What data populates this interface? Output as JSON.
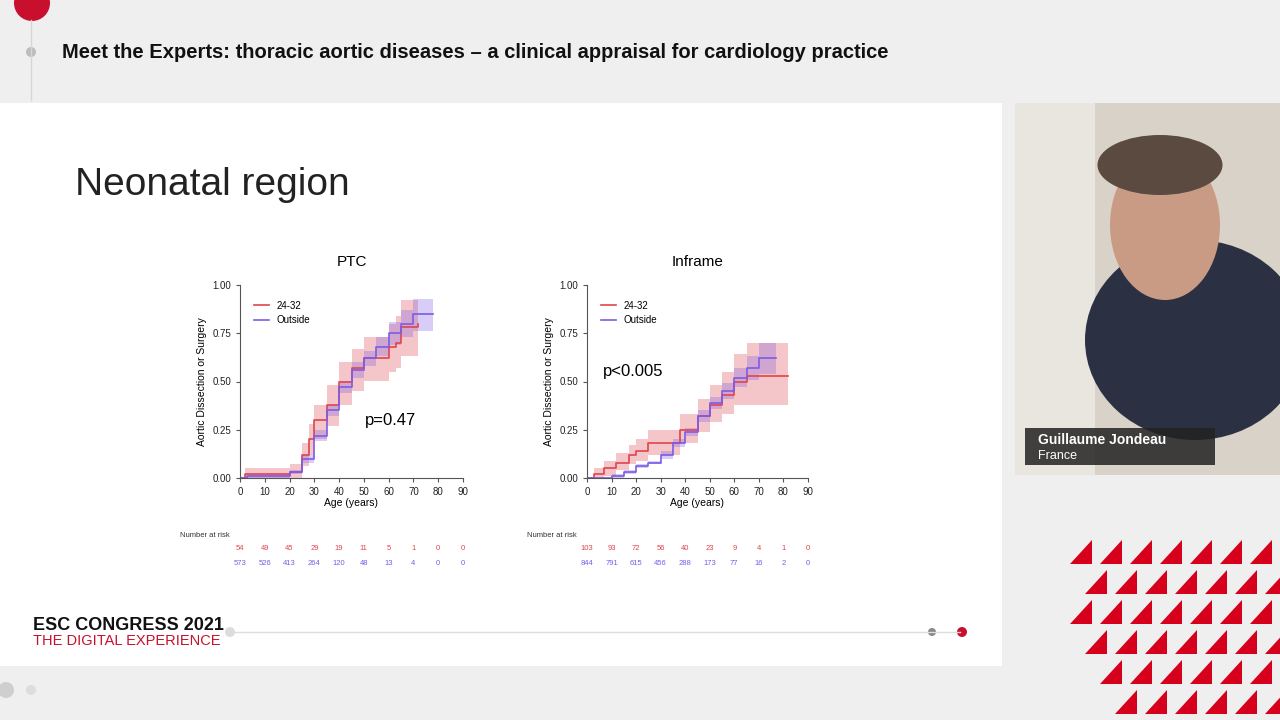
{
  "header": "Meet the Experts: thoracic aortic diseases – a clinical appraisal for cardiology practice",
  "slide_title": "Neonatal region",
  "footer": [
    "ESC CONGRESS 2021",
    "THE DIGITAL EXPERIENCE"
  ],
  "speaker": {
    "name": "Guillaume Jondeau",
    "country": "France"
  },
  "chart_data": [
    {
      "type": "step",
      "title": "PTC",
      "x_label": "Age (years)",
      "y_label": "Aortic Dissection or Surgery",
      "annotations": [
        "p=0.47"
      ],
      "legend": "upper left",
      "xlim": [
        0,
        90
      ],
      "xticks": [
        0,
        10,
        20,
        30,
        40,
        50,
        60,
        70,
        80,
        90
      ],
      "ylim": [
        0,
        1
      ],
      "yticks": [
        {
          "value": 0,
          "label": "0.00"
        },
        {
          "value": 0.25,
          "label": "0.25"
        },
        {
          "value": 0.5,
          "label": "0.50"
        },
        {
          "value": 0.75,
          "label": "0.75"
        },
        {
          "value": 1,
          "label": "1.00"
        }
      ],
      "series": [
        {
          "name": "24-32",
          "color": "#e0444c",
          "x": [
            0,
            2,
            17,
            20,
            25,
            28,
            30,
            33,
            35,
            40,
            45,
            50,
            55,
            60,
            63,
            65,
            72
          ],
          "values": [
            0,
            0.02,
            0.02,
            0.03,
            0.12,
            0.2,
            0.3,
            0.3,
            0.38,
            0.5,
            0.57,
            0.62,
            0.62,
            0.68,
            0.7,
            0.78,
            0.8
          ],
          "lower": [
            0,
            0,
            0,
            0,
            0.06,
            0.12,
            0.2,
            0.2,
            0.27,
            0.38,
            0.45,
            0.5,
            0.5,
            0.55,
            0.57,
            0.63,
            0.65
          ],
          "upper": [
            0,
            0.05,
            0.05,
            0.07,
            0.18,
            0.28,
            0.38,
            0.38,
            0.48,
            0.6,
            0.67,
            0.73,
            0.73,
            0.8,
            0.84,
            0.92,
            0.95
          ]
        },
        {
          "name": "Outside",
          "color": "#7b5ce6",
          "x": [
            0,
            3,
            18,
            20,
            25,
            30,
            35,
            40,
            45,
            50,
            55,
            60,
            65,
            70,
            78
          ],
          "values": [
            0,
            0.01,
            0.01,
            0.03,
            0.1,
            0.22,
            0.35,
            0.47,
            0.56,
            0.62,
            0.68,
            0.75,
            0.8,
            0.85,
            0.85
          ],
          "lower": [
            0,
            0,
            0,
            0.02,
            0.08,
            0.19,
            0.32,
            0.44,
            0.52,
            0.58,
            0.63,
            0.69,
            0.73,
            0.76,
            0.76
          ],
          "upper": [
            0,
            0.02,
            0.02,
            0.04,
            0.12,
            0.25,
            0.38,
            0.5,
            0.6,
            0.66,
            0.73,
            0.81,
            0.87,
            0.93,
            0.93
          ]
        }
      ],
      "risk_table": {
        "title": "Number at risk",
        "x": [
          0,
          10,
          20,
          30,
          40,
          50,
          60,
          70,
          80,
          90
        ],
        "rows": [
          [
            54,
            49,
            45,
            29,
            19,
            11,
            5,
            1,
            0,
            0
          ],
          [
            573,
            526,
            413,
            264,
            120,
            48,
            13,
            4,
            0,
            0
          ]
        ]
      }
    },
    {
      "type": "step",
      "title": "Inframe",
      "x_label": "Age (years)",
      "y_label": "Aortic Dissection or Surgery",
      "annotations": [
        "p<0.005"
      ],
      "legend": "upper left",
      "xlim": [
        0,
        90
      ],
      "xticks": [
        0,
        10,
        20,
        30,
        40,
        50,
        60,
        70,
        80,
        90
      ],
      "ylim": [
        0,
        1
      ],
      "yticks": [
        {
          "value": 0,
          "label": "0.00"
        },
        {
          "value": 0.25,
          "label": "0.25"
        },
        {
          "value": 0.5,
          "label": "0.50"
        },
        {
          "value": 0.75,
          "label": "0.75"
        },
        {
          "value": 1,
          "label": "1.00"
        }
      ],
      "series": [
        {
          "name": "24-32",
          "color": "#e0444c",
          "x": [
            0,
            3,
            7,
            12,
            17,
            20,
            25,
            33,
            38,
            45,
            50,
            55,
            60,
            65,
            82
          ],
          "values": [
            0,
            0.02,
            0.05,
            0.08,
            0.12,
            0.14,
            0.18,
            0.18,
            0.25,
            0.32,
            0.38,
            0.43,
            0.5,
            0.53,
            0.53
          ],
          "lower": [
            0,
            0,
            0.01,
            0.04,
            0.07,
            0.09,
            0.12,
            0.12,
            0.18,
            0.24,
            0.29,
            0.33,
            0.38,
            0.38,
            0.36
          ],
          "upper": [
            0,
            0.05,
            0.09,
            0.13,
            0.17,
            0.2,
            0.25,
            0.25,
            0.33,
            0.41,
            0.48,
            0.55,
            0.64,
            0.7,
            0.7
          ]
        },
        {
          "name": "Outside",
          "color": "#7b5ce6",
          "x": [
            0,
            8,
            10,
            15,
            20,
            25,
            30,
            35,
            40,
            45,
            50,
            55,
            60,
            65,
            70,
            77
          ],
          "values": [
            0,
            0,
            0.01,
            0.03,
            0.06,
            0.08,
            0.12,
            0.18,
            0.24,
            0.32,
            0.39,
            0.45,
            0.52,
            0.57,
            0.62,
            0.62
          ],
          "lower": [
            0,
            0,
            0,
            0.02,
            0.05,
            0.07,
            0.1,
            0.16,
            0.22,
            0.29,
            0.36,
            0.41,
            0.47,
            0.51,
            0.54,
            0.54
          ],
          "upper": [
            0,
            0,
            0.02,
            0.04,
            0.07,
            0.09,
            0.14,
            0.2,
            0.26,
            0.35,
            0.42,
            0.49,
            0.57,
            0.63,
            0.7,
            0.7
          ]
        }
      ],
      "risk_table": {
        "title": "Number at risk",
        "x": [
          0,
          10,
          20,
          30,
          40,
          50,
          60,
          70,
          80,
          90
        ],
        "rows": [
          [
            103,
            93,
            72,
            56,
            40,
            23,
            9,
            4,
            1,
            0
          ],
          [
            844,
            791,
            615,
            456,
            288,
            173,
            77,
            16,
            2,
            0
          ]
        ]
      }
    }
  ]
}
